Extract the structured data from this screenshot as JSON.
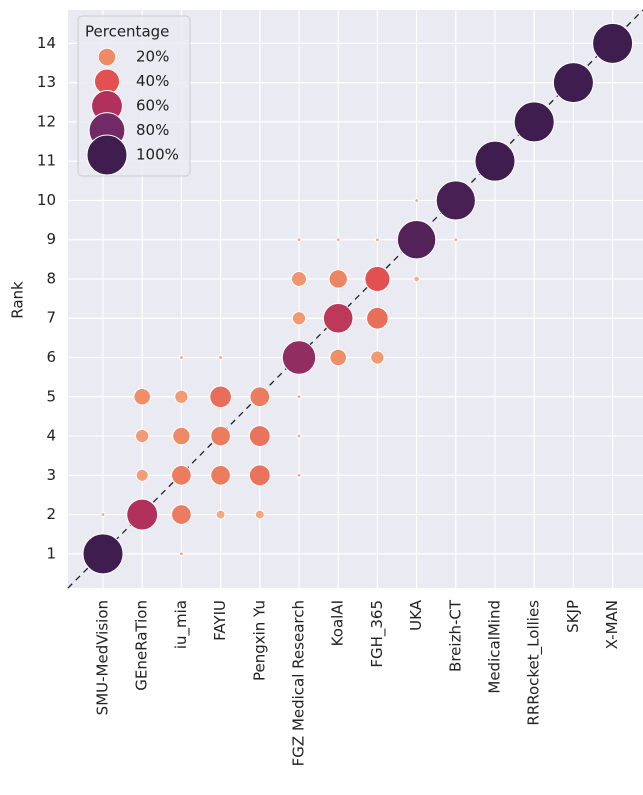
{
  "chart_data": {
    "type": "scatter",
    "ylabel": "Rank",
    "categories": [
      "SMU-MedVision",
      "GEneRaTion",
      "iu_mia",
      "FAYIU",
      "Pengxin Yu",
      "FGZ Medical Research",
      "KoalAI",
      "FGH_365",
      "UKA",
      "Breizh-CT",
      "MedicalMind",
      "RRRocket_Lollies",
      "SKJP",
      "X-MAN"
    ],
    "ylim": [
      0.13,
      14.85
    ],
    "yticks": [
      1,
      2,
      3,
      4,
      5,
      6,
      7,
      8,
      9,
      10,
      11,
      12,
      13,
      14
    ],
    "grid": true,
    "legend_title": "Percentage",
    "legend_position": "upper left",
    "size_legend": [
      {
        "value": 20,
        "label": "20%"
      },
      {
        "value": 40,
        "label": "40%"
      },
      {
        "value": 60,
        "label": "60%"
      },
      {
        "value": 80,
        "label": "80%"
      },
      {
        "value": 100,
        "label": "100%"
      }
    ],
    "colormap": [
      "#f6b48e",
      "#ee8a64",
      "#e2504f",
      "#b1305c",
      "#722a66",
      "#3f1d4f"
    ],
    "points": [
      {
        "x": "SMU-MedVision",
        "y": 1,
        "size": 100
      },
      {
        "x": "SMU-MedVision",
        "y": 2,
        "size": 2
      },
      {
        "x": "GEneRaTion",
        "y": 2,
        "size": 60
      },
      {
        "x": "GEneRaTion",
        "y": 3,
        "size": 10
      },
      {
        "x": "GEneRaTion",
        "y": 4,
        "size": 12
      },
      {
        "x": "GEneRaTion",
        "y": 5,
        "size": 18
      },
      {
        "x": "iu_mia",
        "y": 1,
        "size": 2
      },
      {
        "x": "iu_mia",
        "y": 2,
        "size": 25
      },
      {
        "x": "iu_mia",
        "y": 3,
        "size": 25
      },
      {
        "x": "iu_mia",
        "y": 4,
        "size": 20
      },
      {
        "x": "iu_mia",
        "y": 5,
        "size": 12
      },
      {
        "x": "iu_mia",
        "y": 6,
        "size": 2
      },
      {
        "x": "FAYIU",
        "y": 2,
        "size": 6
      },
      {
        "x": "FAYIU",
        "y": 3,
        "size": 25
      },
      {
        "x": "FAYIU",
        "y": 4,
        "size": 25
      },
      {
        "x": "FAYIU",
        "y": 5,
        "size": 30
      },
      {
        "x": "FAYIU",
        "y": 6,
        "size": 2
      },
      {
        "x": "Pengxin Yu",
        "y": 2,
        "size": 6
      },
      {
        "x": "Pengxin Yu",
        "y": 3,
        "size": 28
      },
      {
        "x": "Pengxin Yu",
        "y": 4,
        "size": 28
      },
      {
        "x": "Pengxin Yu",
        "y": 5,
        "size": 25
      },
      {
        "x": "FGZ Medical Research",
        "y": 3,
        "size": 2
      },
      {
        "x": "FGZ Medical Research",
        "y": 4,
        "size": 2
      },
      {
        "x": "FGZ Medical Research",
        "y": 5,
        "size": 2
      },
      {
        "x": "FGZ Medical Research",
        "y": 6,
        "size": 70
      },
      {
        "x": "FGZ Medical Research",
        "y": 7,
        "size": 12
      },
      {
        "x": "FGZ Medical Research",
        "y": 8,
        "size": 15
      },
      {
        "x": "FGZ Medical Research",
        "y": 9,
        "size": 2
      },
      {
        "x": "KoalAI",
        "y": 6,
        "size": 18
      },
      {
        "x": "KoalAI",
        "y": 7,
        "size": 55
      },
      {
        "x": "KoalAI",
        "y": 8,
        "size": 22
      },
      {
        "x": "KoalAI",
        "y": 9,
        "size": 2
      },
      {
        "x": "FGH_365",
        "y": 6,
        "size": 12
      },
      {
        "x": "FGH_365",
        "y": 7,
        "size": 30
      },
      {
        "x": "FGH_365",
        "y": 8,
        "size": 40
      },
      {
        "x": "FGH_365",
        "y": 9,
        "size": 2
      },
      {
        "x": "UKA",
        "y": 8,
        "size": 3
      },
      {
        "x": "UKA",
        "y": 9,
        "size": 92
      },
      {
        "x": "UKA",
        "y": 10,
        "size": 2
      },
      {
        "x": "Breizh-CT",
        "y": 9,
        "size": 2
      },
      {
        "x": "Breizh-CT",
        "y": 10,
        "size": 96
      },
      {
        "x": "MedicalMind",
        "y": 11,
        "size": 100
      },
      {
        "x": "RRRocket_Lollies",
        "y": 12,
        "size": 100
      },
      {
        "x": "SKJP",
        "y": 13,
        "size": 100
      },
      {
        "x": "X-MAN",
        "y": 14,
        "size": 100
      }
    ]
  }
}
